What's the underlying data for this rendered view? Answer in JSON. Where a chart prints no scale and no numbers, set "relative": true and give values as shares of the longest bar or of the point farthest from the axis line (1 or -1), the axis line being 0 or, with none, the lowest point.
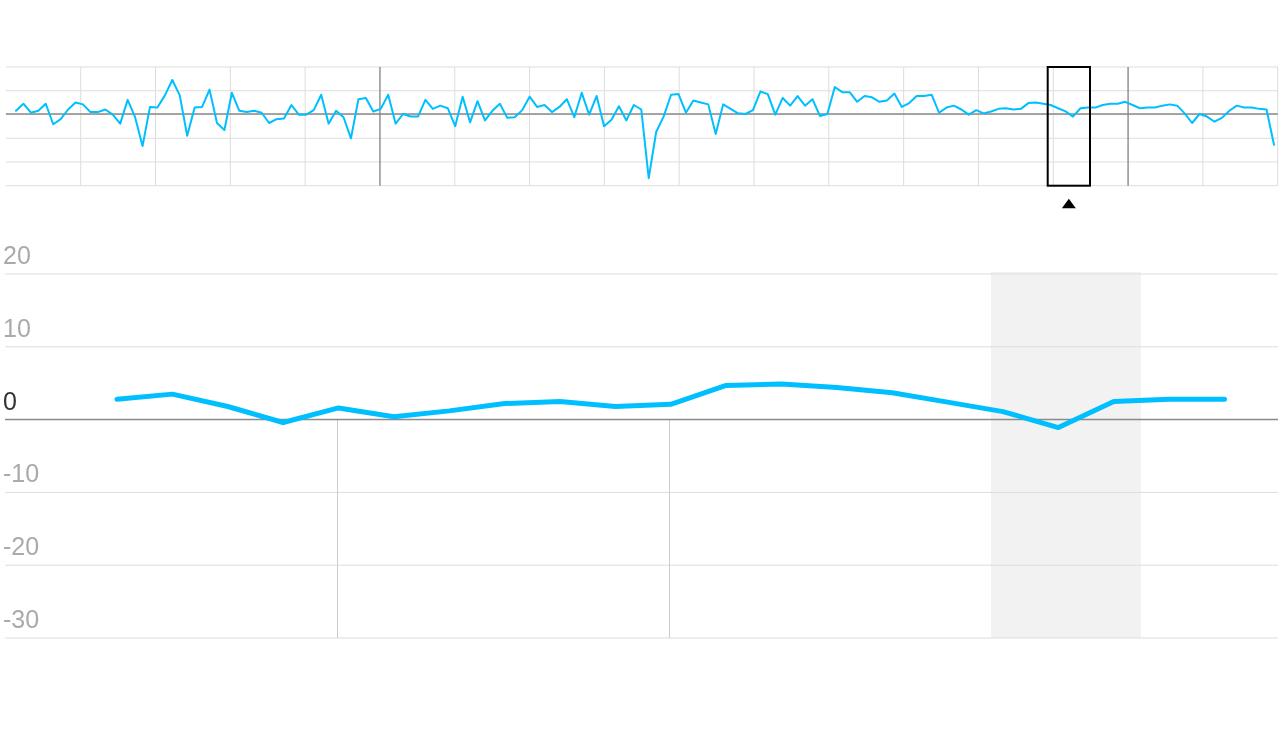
{
  "chart_data": [
    {
      "type": "line",
      "color": "#00bfff",
      "relative": true,
      "categories": [
        null,
        null,
        null,
        null,
        null,
        null,
        null,
        null,
        null,
        null,
        null,
        null,
        null,
        null,
        null,
        null,
        null,
        null,
        null,
        null,
        null,
        null,
        null,
        null,
        null,
        null,
        null,
        null,
        null,
        null,
        null,
        null,
        null,
        null,
        null,
        null,
        null,
        null,
        null,
        null,
        null,
        null,
        null,
        null,
        null,
        null,
        null,
        null,
        null,
        null,
        null,
        null,
        null,
        null,
        null,
        null,
        null,
        null,
        null,
        null,
        null,
        null,
        null,
        null,
        null,
        null,
        null,
        null,
        null,
        null,
        null,
        null,
        null,
        null,
        null,
        null,
        null,
        null,
        null,
        null,
        null,
        null,
        null,
        null,
        null,
        null,
        null,
        null,
        null,
        null,
        null,
        null,
        null,
        null,
        null,
        null,
        null,
        null,
        null,
        null,
        null,
        null,
        null,
        null,
        null,
        null,
        null,
        null,
        null,
        null,
        null,
        null,
        null,
        null,
        null,
        null,
        null,
        null,
        null,
        null,
        null,
        null,
        null,
        null,
        null,
        null,
        null,
        null,
        null,
        null,
        null,
        null,
        null,
        null,
        null,
        null,
        null,
        null,
        null,
        null,
        null,
        null,
        null,
        null,
        null,
        null,
        null,
        null,
        null,
        null,
        null,
        null,
        null,
        null,
        null,
        null,
        null,
        null,
        null,
        null,
        null,
        null,
        null,
        null,
        null,
        null,
        null,
        null,
        null,
        null
      ],
      "values": [
        0.05,
        0.16,
        0.02,
        0.05,
        0.16,
        -0.16,
        -0.08,
        0.07,
        0.18,
        0.15,
        0.03,
        0.03,
        0.07,
        -0.01,
        -0.15,
        0.22,
        -0.05,
        -0.5,
        0.11,
        0.1,
        0.29,
        0.53,
        0.29,
        -0.34,
        0.1,
        0.11,
        0.38,
        -0.14,
        -0.25,
        0.33,
        0.05,
        0.03,
        0.05,
        0.02,
        -0.14,
        -0.08,
        -0.07,
        0.14,
        -0.01,
        -0.01,
        0.06,
        0.3,
        -0.15,
        0.05,
        -0.05,
        -0.38,
        0.23,
        0.25,
        0.04,
        0.08,
        0.3,
        -0.15,
        0,
        -0.04,
        -0.04,
        0.22,
        0.08,
        0.13,
        0.09,
        -0.19,
        0.27,
        -0.13,
        0.2,
        -0.1,
        0.05,
        0.16,
        -0.06,
        -0.05,
        0.06,
        0.27,
        0.11,
        0.14,
        0.03,
        0.11,
        0.23,
        -0.05,
        0.33,
        -0.01,
        0.28,
        -0.19,
        -0.09,
        0.12,
        -0.1,
        0.14,
        0.07,
        -1,
        -0.28,
        -0.04,
        0.3,
        0.31,
        0.02,
        0.21,
        0.18,
        0.15,
        -0.31,
        0.15,
        0.08,
        0.01,
        0,
        0.06,
        0.35,
        0.31,
        -0.01,
        0.25,
        0.13,
        0.28,
        0.13,
        0.23,
        -0.03,
        0,
        0.42,
        0.34,
        0.34,
        0.19,
        0.28,
        0.26,
        0.19,
        0.21,
        0.32,
        0.11,
        0.17,
        0.28,
        0.28,
        0.3,
        0.02,
        0.1,
        0.13,
        0.07,
        -0.01,
        0.06,
        0.01,
        0.04,
        0.08,
        0.09,
        0.07,
        0.08,
        0.17,
        0.18,
        0.16,
        0.14,
        0.09,
        0.04,
        -0.04,
        0.09,
        0.1,
        0.1,
        0.14,
        0.16,
        0.16,
        0.19,
        0.14,
        0.09,
        0.1,
        0.1,
        0.13,
        0.15,
        0.13,
        0.01,
        -0.14,
        0,
        -0.04,
        -0.12,
        -0.06,
        0.05,
        0.13,
        0.1,
        0.1,
        0.08,
        0.07,
        -0.48
      ],
      "grid": true
    },
    {
      "type": "line",
      "color": "#00bfff",
      "categories": [
        null,
        null,
        null,
        null,
        null,
        null,
        null,
        null,
        null,
        null,
        null,
        null,
        null,
        null,
        null,
        null,
        null,
        null,
        null,
        null,
        null
      ],
      "values": [
        2.8,
        3.5,
        1.8,
        -0.4,
        1.6,
        0.4,
        1.2,
        2.2,
        2.5,
        1.8,
        2.1,
        4.7,
        4.9,
        4.4,
        3.7,
        2.4,
        1.1,
        -1.1,
        2.5,
        2.8,
        2.8
      ],
      "ylim": [
        -30,
        20
      ],
      "yticks": [
        20,
        10,
        0,
        -10,
        -20,
        -30
      ],
      "grid": "y",
      "tick_labels": "y"
    }
  ]
}
